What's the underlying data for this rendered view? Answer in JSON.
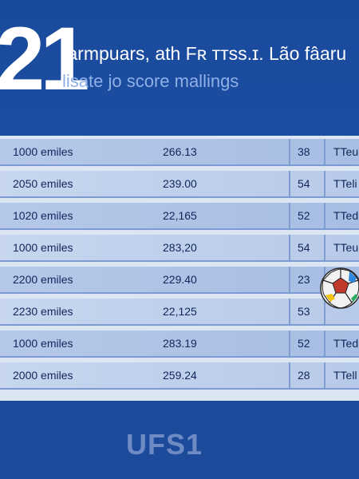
{
  "hero": {
    "big_number": "21",
    "headline": "Iarmpuars, ath Fʀ ᴛᴛss.ɪ. Lão fâaru",
    "subheadline": "lisate jo score mallings"
  },
  "table": {
    "rows": [
      {
        "distance": "1000 emiles",
        "score": "266.13",
        "rank": "38",
        "status": "TTeu"
      },
      {
        "distance": "2050 emiles",
        "score": "239.00",
        "rank": "54",
        "status": "TTeli"
      },
      {
        "distance": "1020 emiles",
        "score": "22,165",
        "rank": "52",
        "status": "TTed"
      },
      {
        "distance": "1000 emiles",
        "score": "283,20",
        "rank": "54",
        "status": "TTeu"
      },
      {
        "distance": "2200 emiles",
        "score": "229.40",
        "rank": "23",
        "status": ""
      },
      {
        "distance": "2230 emiles",
        "score": "22,125",
        "rank": "53",
        "status": ""
      },
      {
        "distance": "1000 emiles",
        "score": "283.19",
        "rank": "52",
        "status": "TTed"
      },
      {
        "distance": "2000 emiles",
        "score": "259.24",
        "rank": "28",
        "status": "TTell"
      }
    ]
  },
  "ball_image": "soccer-ball",
  "footer": {
    "logo_text": "UFS1"
  },
  "colors": {
    "background": "#1c4fa3",
    "row": "#b5c8e8",
    "text_dark": "#10265a",
    "logo": "#6e8bc4"
  }
}
